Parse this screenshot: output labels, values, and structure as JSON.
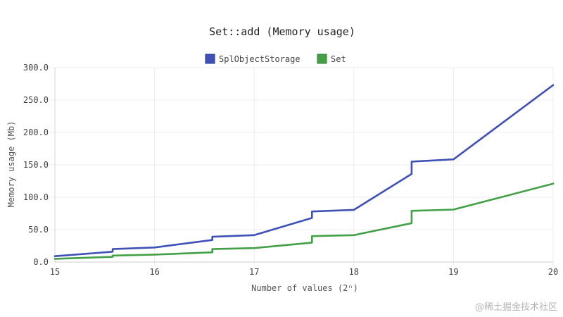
{
  "chart_data": {
    "type": "line",
    "title": "Set::add (Memory usage)",
    "xlabel": "Number of values (2ⁿ)",
    "ylabel": "Memory usage (Mb)",
    "xlim": [
      15,
      20
    ],
    "ylim": [
      0,
      300
    ],
    "x_ticks": [
      15,
      16,
      17,
      18,
      19,
      20
    ],
    "x_tick_labels": [
      "15",
      "16",
      "17",
      "18",
      "19",
      "20"
    ],
    "y_ticks": [
      0,
      50,
      100,
      150,
      200,
      250,
      300
    ],
    "y_tick_labels": [
      "0.0",
      "50.0",
      "100.0",
      "150.0",
      "200.0",
      "250.0",
      "300.0"
    ],
    "grid": true,
    "legend_position": "top-center",
    "series": [
      {
        "name": "SplObjectStorage",
        "color": "#3f51b5",
        "points": [
          [
            15,
            9
          ],
          [
            15.58,
            16
          ],
          [
            15.58,
            20
          ],
          [
            16,
            22.5
          ],
          [
            16.58,
            34
          ],
          [
            16.58,
            39
          ],
          [
            17,
            41.5
          ],
          [
            17.58,
            68
          ],
          [
            17.58,
            78
          ],
          [
            18,
            80.5
          ],
          [
            18.58,
            136
          ],
          [
            18.58,
            155
          ],
          [
            19,
            158.5
          ],
          [
            20,
            273
          ]
        ]
      },
      {
        "name": "Set",
        "color": "#43a047",
        "points": [
          [
            15,
            5
          ],
          [
            15.58,
            8
          ],
          [
            15.58,
            10
          ],
          [
            16,
            11.5
          ],
          [
            16.58,
            15
          ],
          [
            16.58,
            20
          ],
          [
            17,
            21.5
          ],
          [
            17.58,
            30
          ],
          [
            17.58,
            40
          ],
          [
            18,
            41.5
          ],
          [
            18.58,
            60
          ],
          [
            18.58,
            79
          ],
          [
            19,
            81
          ],
          [
            20,
            121
          ]
        ]
      }
    ]
  },
  "watermark": "@稀土掘金技术社区"
}
